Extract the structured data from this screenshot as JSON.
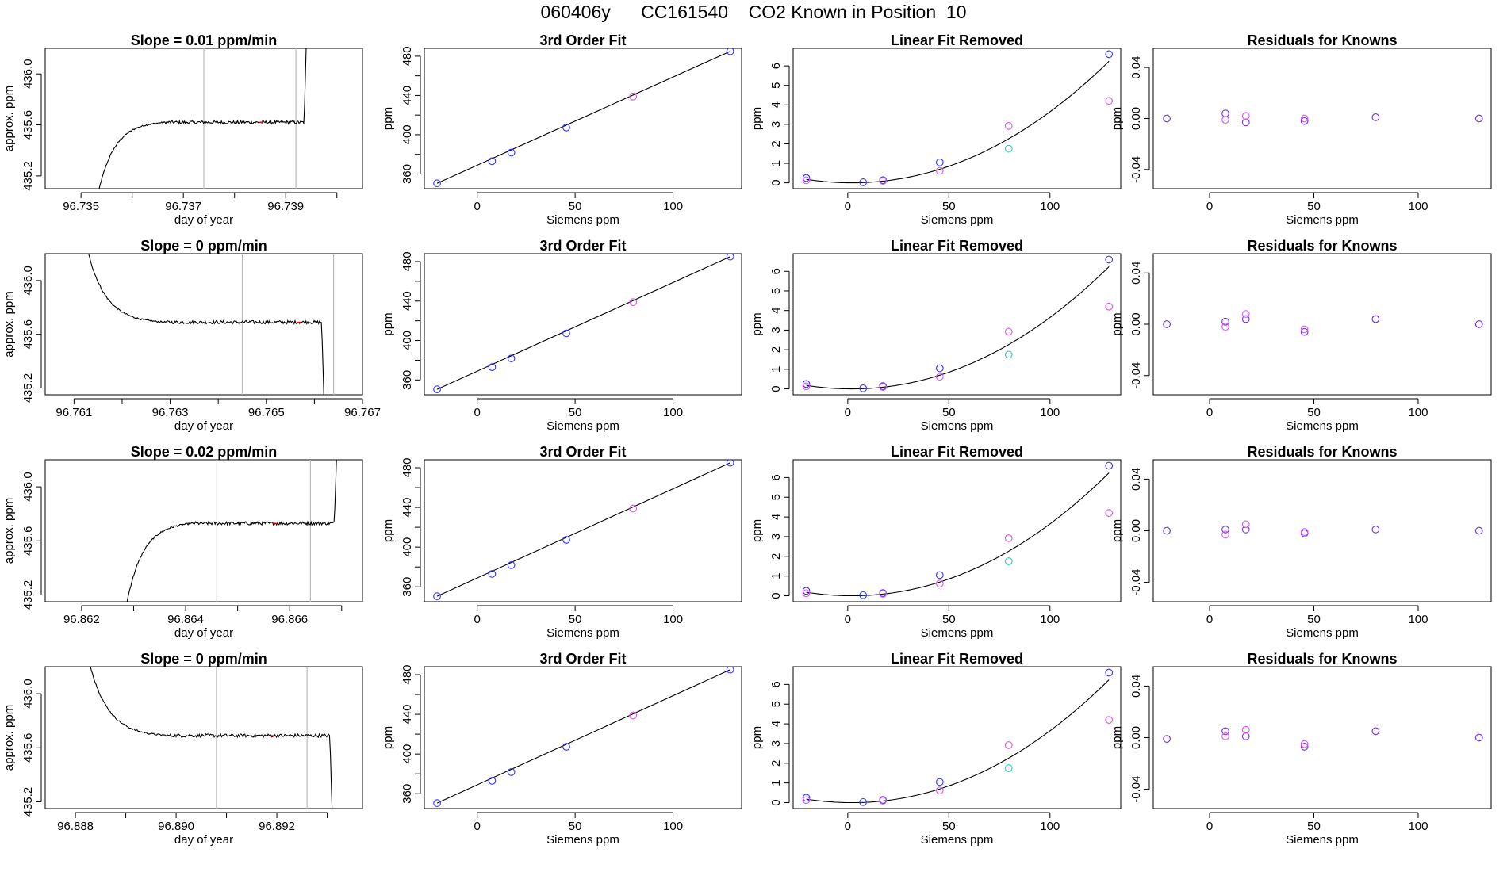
{
  "figure": {
    "title": "060406y      CC161540    CO2 Known in Position  10"
  },
  "colors": {
    "axis": "#000000",
    "trace": "#000000",
    "marker_line": "#bbbbbb",
    "blue": "#3333ff",
    "magenta": "#dd55ee",
    "cyan": "#22cccc",
    "purple": "#6a2ee8",
    "red": "#ff0000"
  },
  "labels": {
    "fit_title": "3rd Order Fit",
    "linear_title": "Linear Fit Removed",
    "resid_title": "Residuals for Knowns",
    "ppm": "ppm",
    "siemens": "Siemens ppm",
    "approx": "approx. ppm",
    "doy": "day of year"
  },
  "chart_data": [
    {
      "type": "line",
      "title": "Slope =  0.01  ppm/min",
      "xlabel": "day of year",
      "ylabel": "approx. ppm",
      "xlim": [
        96.7343,
        96.7405
      ],
      "ylim": [
        435.1,
        436.2
      ],
      "xticks": [
        96.735,
        96.737,
        96.739
      ],
      "xtick_labels": [
        "96.735",
        "96.737",
        "96.739"
      ],
      "xticks_minor": [
        96.736,
        96.738,
        96.74
      ],
      "yticks": [
        435.2,
        435.6,
        436.0
      ],
      "ytick_labels": [
        "435.2",
        "435.6",
        "436.0"
      ],
      "vlines": [
        96.7374,
        96.7392
      ],
      "trace_shape": "rise",
      "trace_x": [
        96.7353,
        96.7394
      ],
      "trace_y": [
        435.0,
        435.62,
        436.2
      ]
    },
    {
      "type": "line",
      "title": "Slope =  0  ppm/min",
      "xlabel": "day of year",
      "ylabel": "approx. ppm",
      "xlim": [
        96.7604,
        96.767
      ],
      "ylim": [
        435.15,
        436.2
      ],
      "xticks": [
        96.761,
        96.763,
        96.765,
        96.767
      ],
      "xtick_labels": [
        "96.761",
        "96.763",
        "96.765",
        "96.767"
      ],
      "xticks_minor": [
        96.762,
        96.764,
        96.766
      ],
      "yticks": [
        435.2,
        435.6,
        436.0
      ],
      "ytick_labels": [
        "435.2",
        "435.6",
        "436.0"
      ],
      "vlines": [
        96.7645,
        96.7664
      ],
      "trace_shape": "fall",
      "trace_x": [
        96.7613,
        96.7662
      ],
      "trace_y": [
        436.2,
        435.69,
        435.1
      ]
    },
    {
      "type": "line",
      "title": "Slope =  0.02  ppm/min",
      "xlabel": "day of year",
      "ylabel": "approx. ppm",
      "xlim": [
        96.8613,
        96.8674
      ],
      "ylim": [
        435.15,
        436.2
      ],
      "xticks": [
        96.862,
        96.864,
        96.866
      ],
      "xtick_labels": [
        "96.862",
        "96.864",
        "96.866"
      ],
      "xticks_minor": [
        96.863,
        96.865,
        96.867
      ],
      "yticks": [
        435.2,
        435.6,
        436.0
      ],
      "ytick_labels": [
        "435.2",
        "435.6",
        "436.0"
      ],
      "vlines": [
        96.8646,
        96.8664
      ],
      "trace_shape": "rise",
      "trace_x": [
        96.8628,
        96.8669
      ],
      "trace_y": [
        435.0,
        435.73,
        436.2
      ]
    },
    {
      "type": "line",
      "title": "Slope =  0  ppm/min",
      "xlabel": "day of year",
      "ylabel": "approx. ppm",
      "xlim": [
        96.8874,
        96.8937
      ],
      "ylim": [
        435.15,
        436.2
      ],
      "xticks": [
        96.888,
        96.89,
        96.892
      ],
      "xtick_labels": [
        "96.888",
        "96.890",
        "96.892"
      ],
      "xticks_minor": [
        96.889,
        96.891,
        96.893
      ],
      "yticks": [
        435.2,
        435.6,
        436.0
      ],
      "ytick_labels": [
        "435.2",
        "435.6",
        "436.0"
      ],
      "vlines": [
        96.8908,
        96.8926
      ],
      "trace_shape": "fall",
      "trace_x": [
        96.8883,
        96.8931
      ],
      "trace_y": [
        436.2,
        435.69,
        435.1
      ]
    },
    {
      "type": "scatter",
      "title": "3rd Order Fit",
      "xlabel": "Siemens ppm",
      "ylabel": "ppm",
      "xlim": [
        -27,
        135
      ],
      "ylim": [
        345,
        488
      ],
      "xticks": [
        0,
        50,
        100
      ],
      "yticks": [
        360,
        400,
        440,
        480
      ],
      "yticks_minor": [
        380,
        420,
        460
      ],
      "series": [
        {
          "color": "blue",
          "x": [
            -20.5,
            7.6,
            17.4,
            45.5,
            129.2
          ],
          "y": [
            350.5,
            373.0,
            381.8,
            407.3,
            485.0
          ]
        },
        {
          "color": "magenta",
          "x": [
            79.6
          ],
          "y": [
            438.9
          ]
        }
      ],
      "fit_x": [
        -20.5,
        129.2
      ],
      "fit_y": [
        350.5,
        485.0
      ]
    },
    {
      "type": "scatter",
      "title": "3rd Order Fit",
      "xlabel": "Siemens ppm",
      "ylabel": "ppm",
      "xlim": [
        -27,
        135
      ],
      "ylim": [
        345,
        488
      ],
      "xticks": [
        0,
        50,
        100
      ],
      "yticks": [
        360,
        400,
        440,
        480
      ],
      "yticks_minor": [
        380,
        420,
        460
      ],
      "series": [
        {
          "color": "blue",
          "x": [
            -20.5,
            7.6,
            17.4,
            45.5,
            129.2
          ],
          "y": [
            350.5,
            373.0,
            381.8,
            407.3,
            485.0
          ]
        },
        {
          "color": "magenta",
          "x": [
            79.6
          ],
          "y": [
            438.9
          ]
        }
      ],
      "fit_x": [
        -20.5,
        129.2
      ],
      "fit_y": [
        350.5,
        485.0
      ]
    },
    {
      "type": "scatter",
      "title": "3rd Order Fit",
      "xlabel": "Siemens ppm",
      "ylabel": "ppm",
      "xlim": [
        -27,
        135
      ],
      "ylim": [
        345,
        488
      ],
      "xticks": [
        0,
        50,
        100
      ],
      "yticks": [
        360,
        400,
        440,
        480
      ],
      "yticks_minor": [
        380,
        420,
        460
      ],
      "series": [
        {
          "color": "blue",
          "x": [
            -20.5,
            7.6,
            17.4,
            45.5,
            129.2
          ],
          "y": [
            350.5,
            373.0,
            381.8,
            407.3,
            485.0
          ]
        },
        {
          "color": "magenta",
          "x": [
            79.6
          ],
          "y": [
            438.9
          ]
        }
      ],
      "fit_x": [
        -20.5,
        129.2
      ],
      "fit_y": [
        350.5,
        485.0
      ]
    },
    {
      "type": "scatter",
      "title": "3rd Order Fit",
      "xlabel": "Siemens ppm",
      "ylabel": "ppm",
      "xlim": [
        -27,
        135
      ],
      "ylim": [
        345,
        488
      ],
      "xticks": [
        0,
        50,
        100
      ],
      "yticks": [
        360,
        400,
        440,
        480
      ],
      "yticks_minor": [
        380,
        420,
        460
      ],
      "series": [
        {
          "color": "blue",
          "x": [
            -20.5,
            7.6,
            17.4,
            45.5,
            129.2
          ],
          "y": [
            350.5,
            373.0,
            381.8,
            407.3,
            485.0
          ]
        },
        {
          "color": "magenta",
          "x": [
            79.6
          ],
          "y": [
            438.9
          ]
        }
      ],
      "fit_x": [
        -20.5,
        129.2
      ],
      "fit_y": [
        350.5,
        485.0
      ]
    },
    {
      "type": "scatter",
      "title": "Linear Fit Removed",
      "xlabel": "Siemens ppm",
      "ylabel": "ppm",
      "xlim": [
        -27,
        135
      ],
      "ylim": [
        -0.3,
        6.9
      ],
      "xticks": [
        0,
        50,
        100
      ],
      "yticks": [
        0,
        1,
        2,
        3,
        4,
        5,
        6
      ],
      "series": [
        {
          "color": "blue",
          "x": [
            -20.5,
            7.6,
            17.4,
            45.5,
            129.2
          ],
          "y": [
            0.25,
            0.03,
            0.14,
            1.05,
            6.6
          ]
        },
        {
          "color": "magenta",
          "x": [
            -20.5,
            17.4,
            45.5,
            79.6,
            129.2
          ],
          "y": [
            0.13,
            0.1,
            0.62,
            2.92,
            4.2
          ]
        },
        {
          "color": "cyan",
          "x": [
            79.6
          ],
          "y": [
            1.75
          ]
        }
      ],
      "curve": {
        "a": 0.0004,
        "b": -0.002,
        "c": 0.059,
        "d": 0.05,
        "x0": -20.5,
        "x1": 129.2
      }
    },
    {
      "type": "scatter",
      "title": "Linear Fit Removed",
      "xlabel": "Siemens ppm",
      "ylabel": "ppm",
      "xlim": [
        -27,
        135
      ],
      "ylim": [
        -0.3,
        6.9
      ],
      "xticks": [
        0,
        50,
        100
      ],
      "yticks": [
        0,
        1,
        2,
        3,
        4,
        5,
        6
      ],
      "series": [
        {
          "color": "blue",
          "x": [
            -20.5,
            7.6,
            17.4,
            45.5,
            129.2
          ],
          "y": [
            0.25,
            0.03,
            0.14,
            1.05,
            6.6
          ]
        },
        {
          "color": "magenta",
          "x": [
            -20.5,
            17.4,
            45.5,
            79.6,
            129.2
          ],
          "y": [
            0.13,
            0.1,
            0.62,
            2.92,
            4.2
          ]
        },
        {
          "color": "cyan",
          "x": [
            79.6
          ],
          "y": [
            1.75
          ]
        }
      ],
      "curve": {
        "a": 0.0004,
        "b": -0.002,
        "c": 0.059,
        "d": 0.05,
        "x0": -20.5,
        "x1": 129.2
      }
    },
    {
      "type": "scatter",
      "title": "Linear Fit Removed",
      "xlabel": "Siemens ppm",
      "ylabel": "ppm",
      "xlim": [
        -27,
        135
      ],
      "ylim": [
        -0.3,
        6.9
      ],
      "xticks": [
        0,
        50,
        100
      ],
      "yticks": [
        0,
        1,
        2,
        3,
        4,
        5,
        6
      ],
      "series": [
        {
          "color": "blue",
          "x": [
            -20.5,
            7.6,
            17.4,
            45.5,
            129.2
          ],
          "y": [
            0.25,
            0.03,
            0.14,
            1.05,
            6.6
          ]
        },
        {
          "color": "magenta",
          "x": [
            -20.5,
            17.4,
            45.5,
            79.6,
            129.2
          ],
          "y": [
            0.13,
            0.1,
            0.62,
            2.92,
            4.2
          ]
        },
        {
          "color": "cyan",
          "x": [
            79.6
          ],
          "y": [
            1.75
          ]
        }
      ],
      "curve": {
        "a": 0.0004,
        "b": -0.002,
        "c": 0.059,
        "d": 0.05,
        "x0": -20.5,
        "x1": 129.2
      }
    },
    {
      "type": "scatter",
      "title": "Linear Fit Removed",
      "xlabel": "Siemens ppm",
      "ylabel": "ppm",
      "xlim": [
        -27,
        135
      ],
      "ylim": [
        -0.3,
        6.9
      ],
      "xticks": [
        0,
        50,
        100
      ],
      "yticks": [
        0,
        1,
        2,
        3,
        4,
        5,
        6
      ],
      "series": [
        {
          "color": "blue",
          "x": [
            -20.5,
            7.6,
            17.4,
            45.5,
            129.2
          ],
          "y": [
            0.25,
            0.03,
            0.14,
            1.05,
            6.6
          ]
        },
        {
          "color": "magenta",
          "x": [
            -20.5,
            17.4,
            45.5,
            79.6,
            129.2
          ],
          "y": [
            0.13,
            0.1,
            0.62,
            2.92,
            4.2
          ]
        },
        {
          "color": "cyan",
          "x": [
            79.6
          ],
          "y": [
            1.75
          ]
        }
      ],
      "curve": {
        "a": 0.0004,
        "b": -0.002,
        "c": 0.059,
        "d": 0.05,
        "x0": -20.5,
        "x1": 129.2
      }
    },
    {
      "type": "scatter",
      "title": "Residuals for Knowns",
      "xlabel": "Siemens ppm",
      "ylabel": "ppm",
      "xlim": [
        -27,
        135
      ],
      "ylim": [
        -0.055,
        0.055
      ],
      "xticks": [
        0,
        50,
        100
      ],
      "yticks": [
        -0.04,
        0.0,
        0.04
      ],
      "ytick_labels": [
        "-0.04",
        "0.00",
        "0.04"
      ],
      "series": [
        {
          "color": "purple",
          "x": [
            -20.5,
            7.6,
            17.4,
            45.5,
            79.6,
            129.2
          ],
          "y": [
            0.0,
            0.004,
            -0.003,
            -0.002,
            0.001,
            0.0
          ]
        },
        {
          "color": "magenta",
          "x": [
            7.6,
            17.4,
            45.5
          ],
          "y": [
            -0.001,
            0.002,
            0.0
          ]
        }
      ]
    },
    {
      "type": "scatter",
      "title": "Residuals for Knowns",
      "xlabel": "Siemens ppm",
      "ylabel": "ppm",
      "xlim": [
        -27,
        135
      ],
      "ylim": [
        -0.055,
        0.055
      ],
      "xticks": [
        0,
        50,
        100
      ],
      "yticks": [
        -0.04,
        0.0,
        0.04
      ],
      "ytick_labels": [
        "-0.04",
        "0.00",
        "0.04"
      ],
      "series": [
        {
          "color": "purple",
          "x": [
            -20.5,
            7.6,
            17.4,
            45.5,
            79.6,
            129.2
          ],
          "y": [
            0.0,
            0.002,
            0.004,
            -0.006,
            0.004,
            0.0
          ]
        },
        {
          "color": "magenta",
          "x": [
            7.6,
            17.4,
            45.5
          ],
          "y": [
            -0.002,
            0.008,
            -0.004
          ]
        }
      ]
    },
    {
      "type": "scatter",
      "title": "Residuals for Knowns",
      "xlabel": "Siemens ppm",
      "ylabel": "ppm",
      "xlim": [
        -27,
        135
      ],
      "ylim": [
        -0.055,
        0.055
      ],
      "xticks": [
        0,
        50,
        100
      ],
      "yticks": [
        -0.04,
        0.0,
        0.04
      ],
      "ytick_labels": [
        "-0.04",
        "0.00",
        "0.04"
      ],
      "series": [
        {
          "color": "purple",
          "x": [
            -20.5,
            7.6,
            17.4,
            45.5,
            79.6,
            129.2
          ],
          "y": [
            0.0,
            0.001,
            0.001,
            -0.002,
            0.001,
            0.0
          ]
        },
        {
          "color": "magenta",
          "x": [
            7.6,
            17.4,
            45.5
          ],
          "y": [
            -0.003,
            0.005,
            -0.001
          ]
        }
      ]
    },
    {
      "type": "scatter",
      "title": "Residuals for Knowns",
      "xlabel": "Siemens ppm",
      "ylabel": "ppm",
      "xlim": [
        -27,
        135
      ],
      "ylim": [
        -0.055,
        0.055
      ],
      "xticks": [
        0,
        50,
        100
      ],
      "yticks": [
        -0.04,
        0.0,
        0.04
      ],
      "ytick_labels": [
        "-0.04",
        "0.00",
        "0.04"
      ],
      "series": [
        {
          "color": "purple",
          "x": [
            -20.5,
            7.6,
            17.4,
            45.5,
            79.6,
            129.2
          ],
          "y": [
            -0.001,
            0.005,
            0.001,
            -0.007,
            0.005,
            0.0
          ]
        },
        {
          "color": "magenta",
          "x": [
            7.6,
            17.4,
            45.5
          ],
          "y": [
            0.001,
            0.006,
            -0.005
          ]
        }
      ]
    }
  ]
}
